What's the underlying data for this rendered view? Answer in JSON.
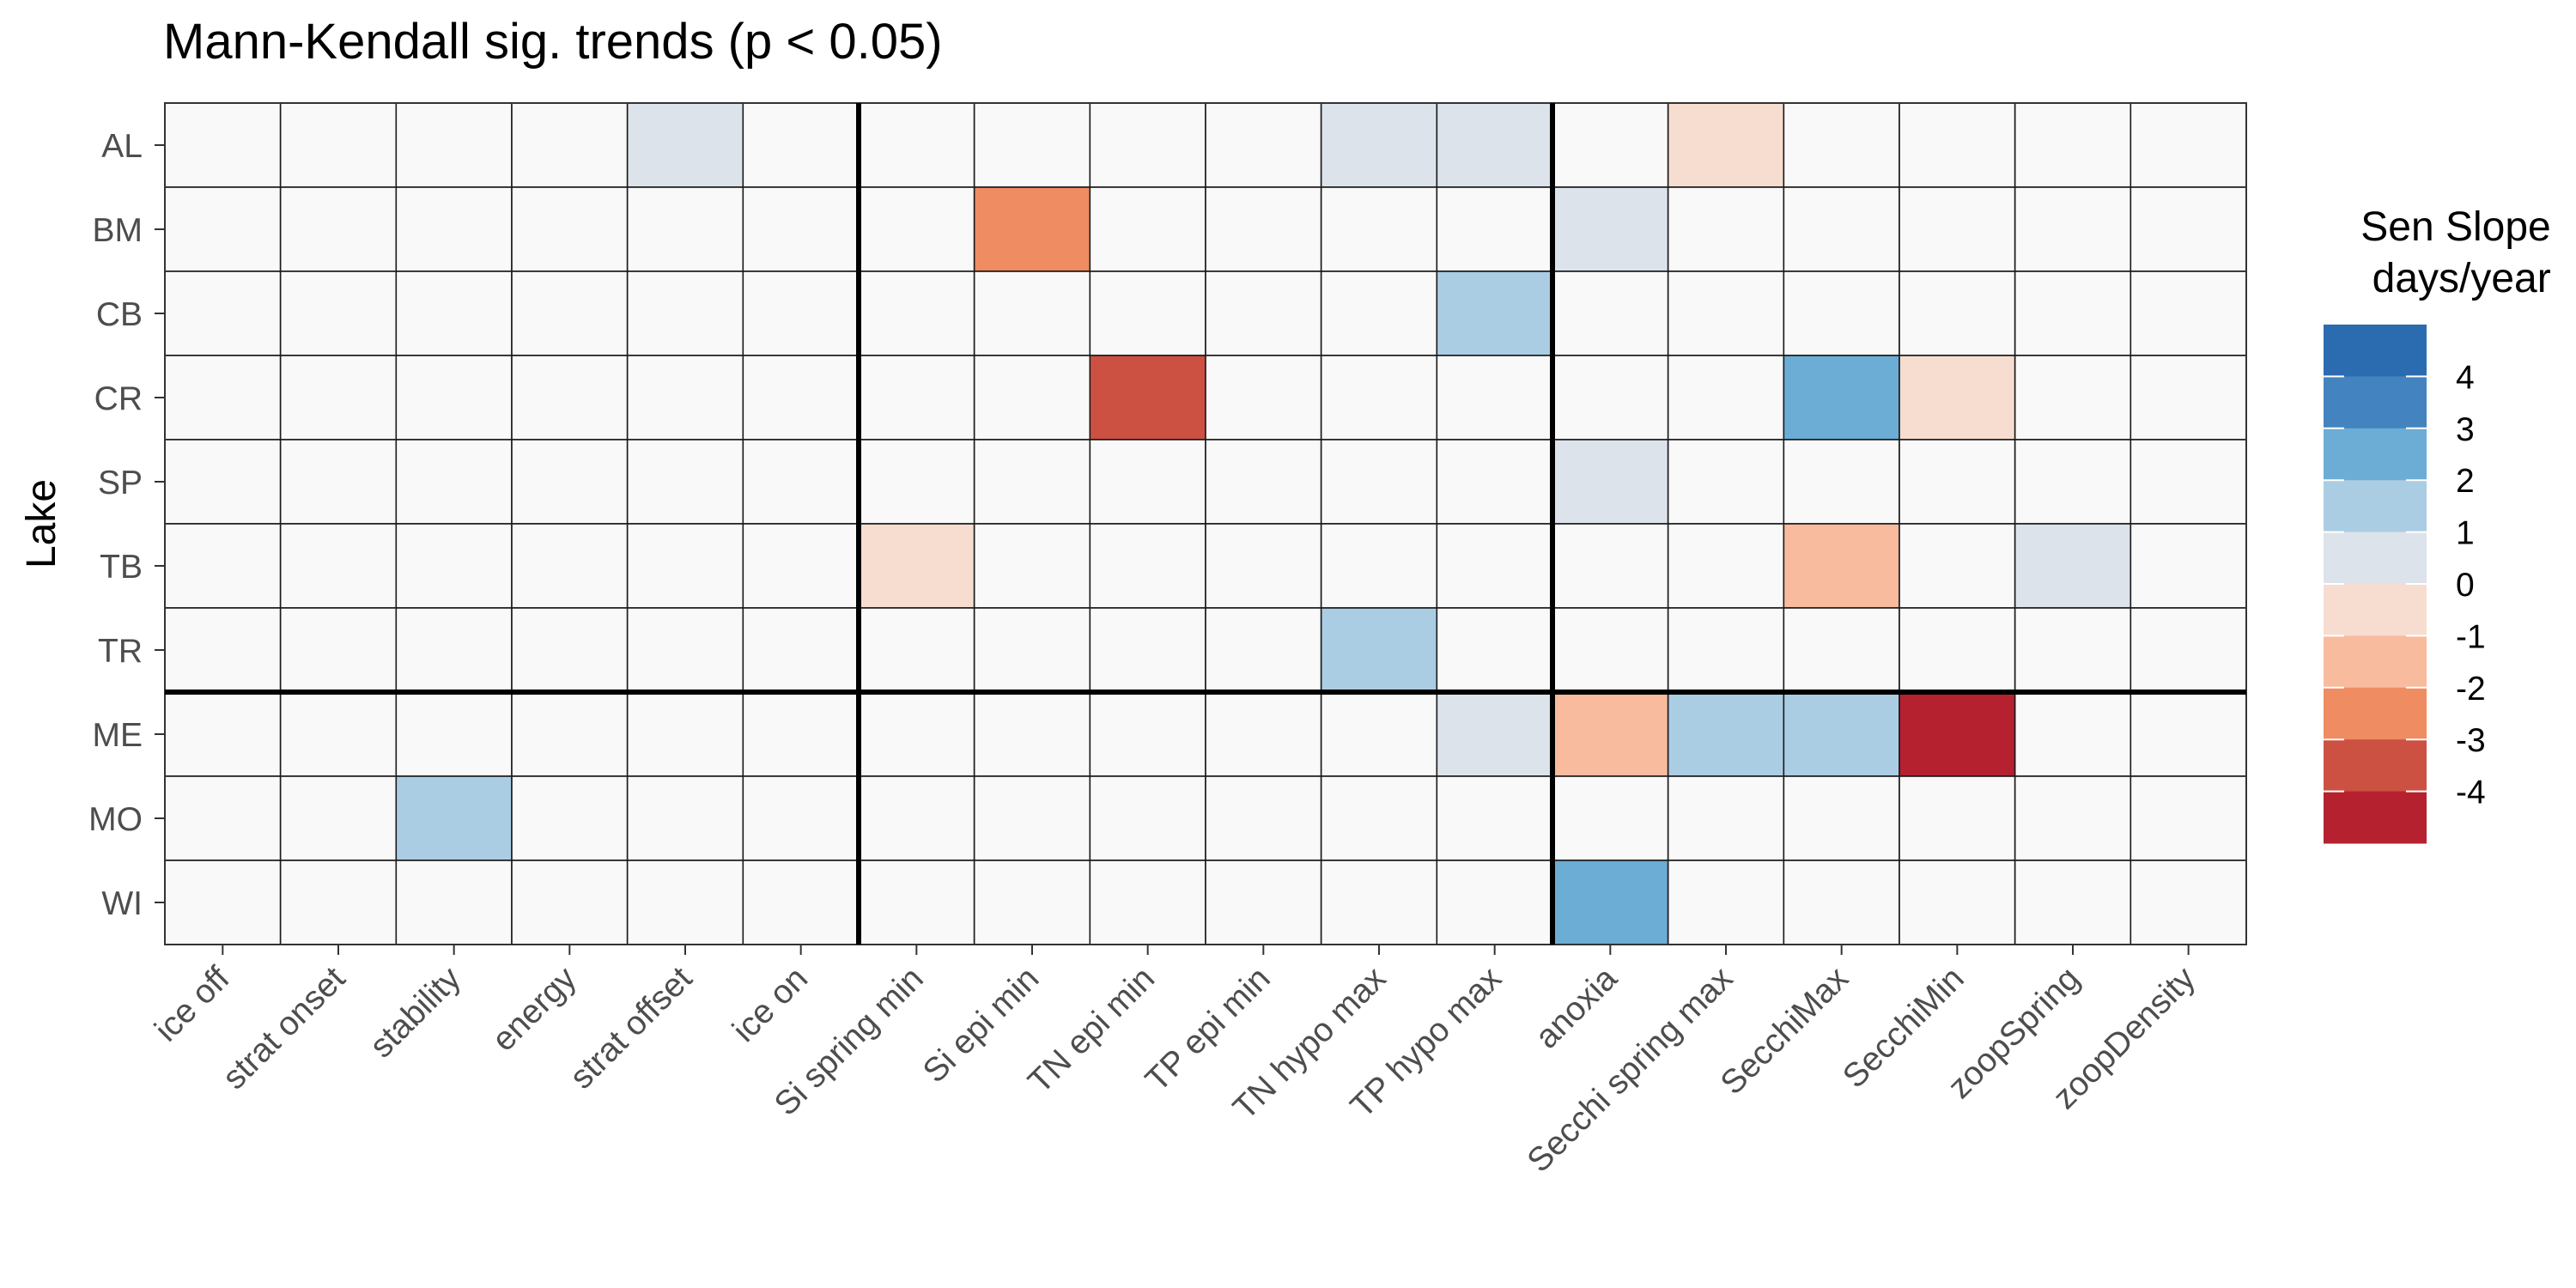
{
  "chart_data": {
    "type": "heatmap",
    "title": "Mann-Kendall sig. trends (p < 0.05)",
    "ylabel": "Lake",
    "xlabel": "",
    "x_categories": [
      "ice off",
      "strat onset",
      "stability",
      "energy",
      "strat offset",
      "ice on",
      "Si spring min",
      "Si epi min",
      "TN epi min",
      "TP epi min",
      "TN hypo max",
      "TP hypo max",
      "anoxia",
      "Secchi spring max",
      "SecchiMax",
      "SecchiMin",
      "zoopSpring",
      "zoopDensity"
    ],
    "y_categories": [
      "AL",
      "BM",
      "CB",
      "CR",
      "SP",
      "TB",
      "TR",
      "ME",
      "MO",
      "WI"
    ],
    "cells": [
      {
        "lake": "AL",
        "variable": "strat offset",
        "value": 0.5
      },
      {
        "lake": "AL",
        "variable": "TN hypo max",
        "value": 0.5
      },
      {
        "lake": "AL",
        "variable": "TP hypo max",
        "value": 0.5
      },
      {
        "lake": "AL",
        "variable": "Secchi spring max",
        "value": -0.5
      },
      {
        "lake": "BM",
        "variable": "Si epi min",
        "value": -2.5
      },
      {
        "lake": "BM",
        "variable": "anoxia",
        "value": 0.5
      },
      {
        "lake": "CB",
        "variable": "TP hypo max",
        "value": 1.5
      },
      {
        "lake": "CR",
        "variable": "TN epi min",
        "value": -3.5
      },
      {
        "lake": "CR",
        "variable": "SecchiMax",
        "value": 2.5
      },
      {
        "lake": "CR",
        "variable": "SecchiMin",
        "value": -0.5
      },
      {
        "lake": "SP",
        "variable": "anoxia",
        "value": 0.5
      },
      {
        "lake": "TB",
        "variable": "Si spring min",
        "value": -0.5
      },
      {
        "lake": "TB",
        "variable": "SecchiMax",
        "value": -1.5
      },
      {
        "lake": "TB",
        "variable": "zoopSpring",
        "value": 0.5
      },
      {
        "lake": "TR",
        "variable": "TN hypo max",
        "value": 1.5
      },
      {
        "lake": "ME",
        "variable": "TP hypo max",
        "value": 0.5
      },
      {
        "lake": "ME",
        "variable": "anoxia",
        "value": -1.5
      },
      {
        "lake": "ME",
        "variable": "Secchi spring max",
        "value": 1.5
      },
      {
        "lake": "ME",
        "variable": "SecchiMax",
        "value": 1.5
      },
      {
        "lake": "ME",
        "variable": "SecchiMin",
        "value": -4.5
      },
      {
        "lake": "MO",
        "variable": "stability",
        "value": 1.5
      },
      {
        "lake": "WI",
        "variable": "anoxia",
        "value": 2.5
      }
    ],
    "empty_fill": "#f9f9f9",
    "separators": {
      "after_x_index": [
        5,
        11
      ],
      "after_y_index": [
        6
      ]
    },
    "legend": {
      "title_lines": [
        "Sen Slope",
        " days/year"
      ],
      "placement": "right",
      "ticks": [
        "4",
        "3",
        "2",
        "1",
        "0",
        "-1",
        "-2",
        "-3",
        "-4"
      ],
      "bins": [
        {
          "min": 4,
          "max": 5,
          "color": "#2b6cb0"
        },
        {
          "min": 3,
          "max": 4,
          "color": "#4383bf"
        },
        {
          "min": 2,
          "max": 3,
          "color": "#6badd5"
        },
        {
          "min": 1,
          "max": 2,
          "color": "#abcde4"
        },
        {
          "min": 0,
          "max": 1,
          "color": "#dde3ea"
        },
        {
          "min": -1,
          "max": 0,
          "color": "#f6ddd0"
        },
        {
          "min": -2,
          "max": -1,
          "color": "#f8bb9d"
        },
        {
          "min": -3,
          "max": -2,
          "color": "#ef8c62"
        },
        {
          "min": -4,
          "max": -3,
          "color": "#cd5142"
        },
        {
          "min": -5,
          "max": -4,
          "color": "#b5212f"
        }
      ]
    }
  }
}
